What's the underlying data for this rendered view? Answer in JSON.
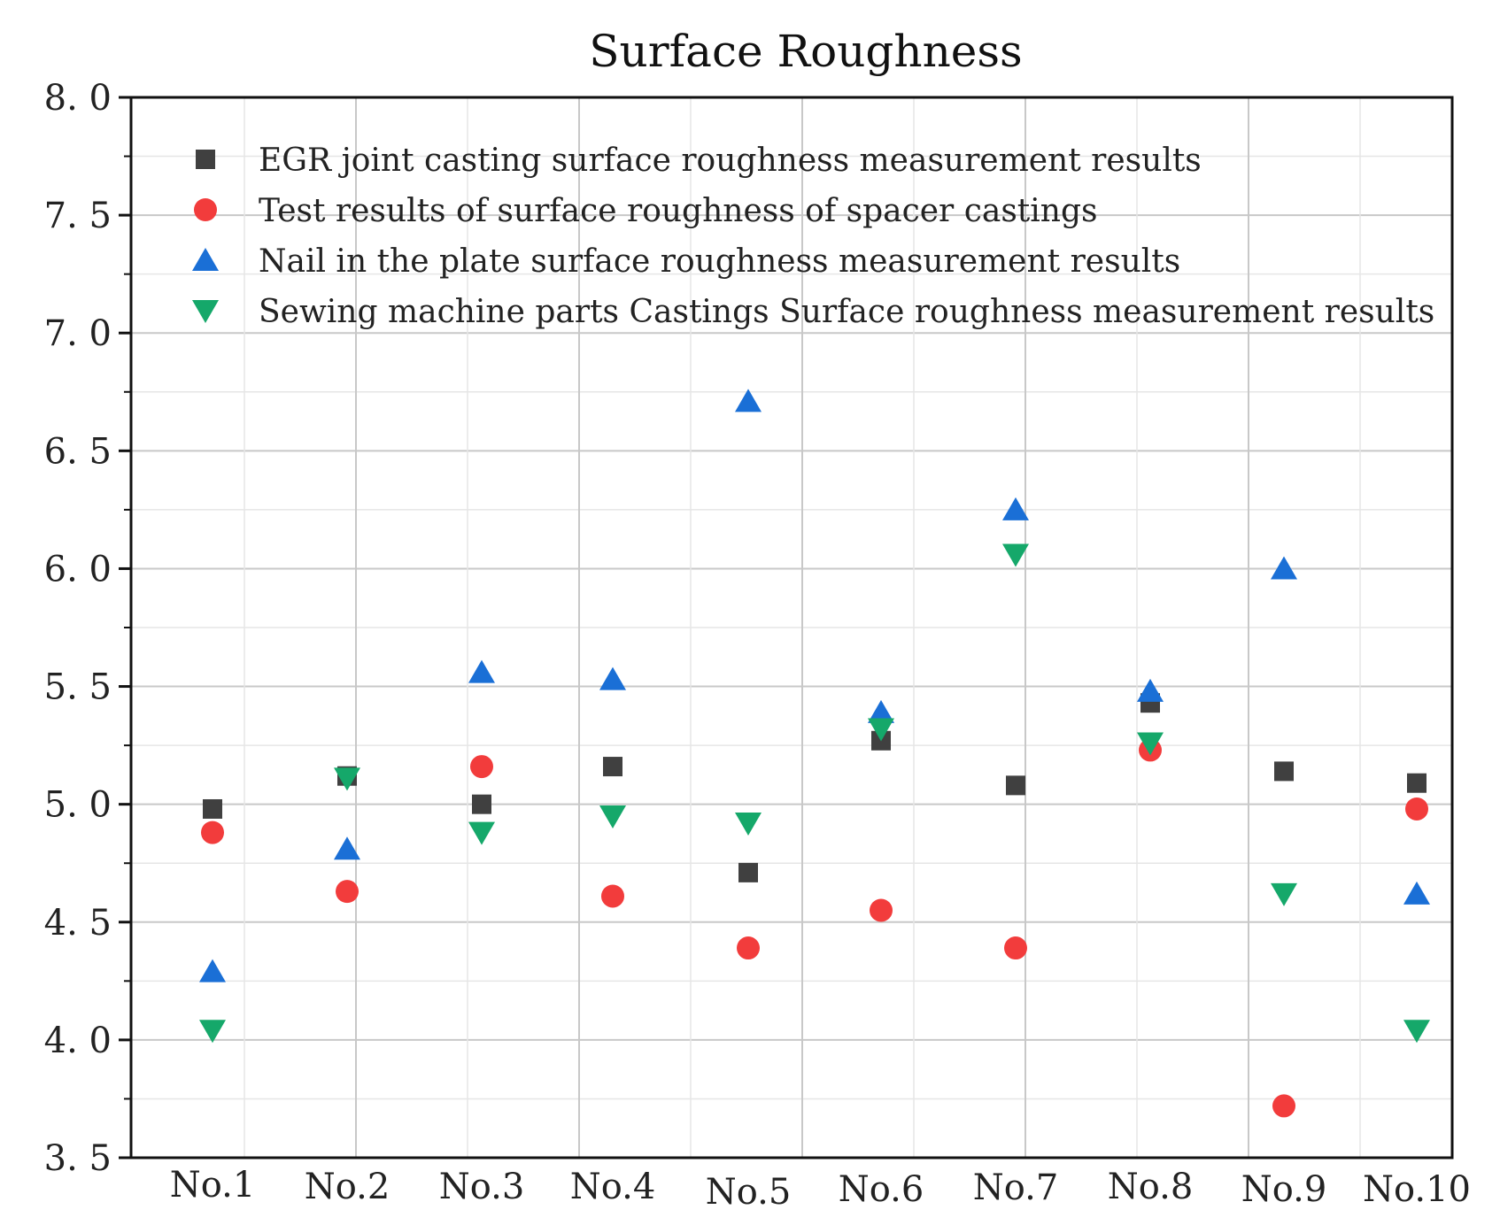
{
  "chart_data": {
    "type": "scatter",
    "title": "Surface Roughness",
    "xlabel": "",
    "ylabel": "",
    "categories": [
      "No.1",
      "No.2",
      "No.3",
      "No.4",
      "No.5",
      "No.6",
      "No.7",
      "No.8",
      "No.9",
      "No.10"
    ],
    "ylim": [
      3.5,
      8.0
    ],
    "yticks": [
      "8. 0",
      "7. 5",
      "7. 0",
      "6. 5",
      "6. 0",
      "5. 5",
      "5. 0",
      "4. 5",
      "4. 0",
      "3. 5"
    ],
    "ytick_values": [
      8.0,
      7.5,
      7.0,
      6.5,
      6.0,
      5.5,
      5.0,
      4.5,
      4.0,
      3.5
    ],
    "grid": true,
    "legend_position": "top-left",
    "series": [
      {
        "name": "EGR joint casting surface roughness measurement results",
        "marker": "square",
        "color": "#404040",
        "values": [
          4.98,
          5.12,
          5.0,
          5.16,
          4.71,
          5.27,
          5.08,
          5.43,
          5.14,
          5.09
        ]
      },
      {
        "name": "Test results of surface roughness of spacer castings",
        "marker": "circle",
        "color": "#f23c3c",
        "values": [
          4.88,
          4.63,
          5.16,
          4.61,
          4.39,
          4.55,
          4.39,
          5.23,
          3.72,
          4.98
        ]
      },
      {
        "name": "Nail in the plate surface roughness measurement results",
        "marker": "triangle-up",
        "color": "#1a6fd6",
        "values": [
          4.29,
          4.81,
          5.56,
          5.53,
          6.71,
          5.39,
          6.25,
          5.48,
          6.0,
          4.62
        ]
      },
      {
        "name": "Sewing machine parts Castings Surface roughness measurement results",
        "marker": "triangle-down",
        "color": "#15a86a",
        "values": [
          4.04,
          5.11,
          4.88,
          4.95,
          4.92,
          5.32,
          6.06,
          5.26,
          4.62,
          4.04
        ]
      }
    ]
  }
}
